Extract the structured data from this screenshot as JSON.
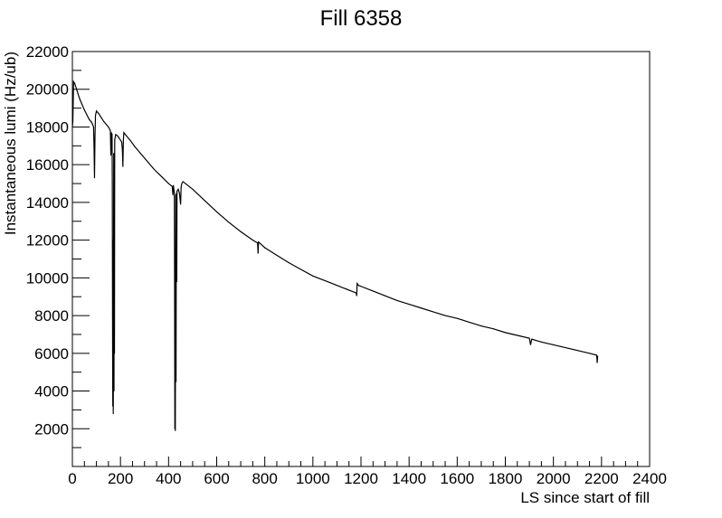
{
  "chart_data": {
    "type": "line",
    "title": "Fill 6358",
    "xlabel": "LS since start of fill",
    "ylabel": "Instantaneous lumi (Hz/ub)",
    "xlim": [
      0,
      2400
    ],
    "ylim": [
      0,
      22000
    ],
    "x_ticks": [
      0,
      200,
      400,
      600,
      800,
      1000,
      1200,
      1400,
      1600,
      1800,
      2000,
      2200,
      2400
    ],
    "y_ticks": [
      2000,
      4000,
      6000,
      8000,
      10000,
      12000,
      14000,
      16000,
      18000,
      20000,
      22000
    ],
    "grid": false,
    "line_color": "#000000",
    "series": [
      {
        "points": [
          [
            0,
            18000
          ],
          [
            2,
            18300
          ],
          [
            5,
            20400
          ],
          [
            10,
            20300
          ],
          [
            20,
            19900
          ],
          [
            30,
            19500
          ],
          [
            40,
            19200
          ],
          [
            50,
            18900
          ],
          [
            60,
            18650
          ],
          [
            70,
            18400
          ],
          [
            80,
            18250
          ],
          [
            88,
            18000
          ],
          [
            90,
            17000
          ],
          [
            92,
            15300
          ],
          [
            94,
            17500
          ],
          [
            96,
            18600
          ],
          [
            100,
            18850
          ],
          [
            110,
            18700
          ],
          [
            120,
            18500
          ],
          [
            130,
            18300
          ],
          [
            140,
            18150
          ],
          [
            150,
            18000
          ],
          [
            158,
            17800
          ],
          [
            160,
            16500
          ],
          [
            162,
            17700
          ],
          [
            165,
            17600
          ],
          [
            166,
            15000
          ],
          [
            167,
            8000
          ],
          [
            168,
            3200
          ],
          [
            169,
            12000
          ],
          [
            170,
            2800
          ],
          [
            171,
            9000
          ],
          [
            172,
            16600
          ],
          [
            173,
            4000
          ],
          [
            174,
            16000
          ],
          [
            175,
            6000
          ],
          [
            176,
            17300
          ],
          [
            180,
            17600
          ],
          [
            190,
            17500
          ],
          [
            200,
            17300
          ],
          [
            205,
            17200
          ],
          [
            208,
            16800
          ],
          [
            210,
            15900
          ],
          [
            212,
            17300
          ],
          [
            214,
            17700
          ],
          [
            220,
            17600
          ],
          [
            240,
            17300
          ],
          [
            260,
            16950
          ],
          [
            280,
            16650
          ],
          [
            300,
            16350
          ],
          [
            320,
            16050
          ],
          [
            340,
            15750
          ],
          [
            360,
            15500
          ],
          [
            380,
            15250
          ],
          [
            400,
            15000
          ],
          [
            415,
            14850
          ],
          [
            418,
            14400
          ],
          [
            420,
            14900
          ],
          [
            424,
            14500
          ],
          [
            425,
            10000
          ],
          [
            426,
            2000
          ],
          [
            427,
            6000
          ],
          [
            428,
            1900
          ],
          [
            429,
            9000
          ],
          [
            430,
            14400
          ],
          [
            431,
            4500
          ],
          [
            432,
            12000
          ],
          [
            433,
            14500
          ],
          [
            434,
            9800
          ],
          [
            435,
            14600
          ],
          [
            440,
            14700
          ],
          [
            445,
            14500
          ],
          [
            450,
            13900
          ],
          [
            452,
            14800
          ],
          [
            455,
            15000
          ],
          [
            460,
            15100
          ],
          [
            470,
            15000
          ],
          [
            500,
            14700
          ],
          [
            550,
            14100
          ],
          [
            600,
            13500
          ],
          [
            650,
            12950
          ],
          [
            700,
            12450
          ],
          [
            750,
            12000
          ],
          [
            770,
            11850
          ],
          [
            772,
            11300
          ],
          [
            774,
            11900
          ],
          [
            800,
            11600
          ],
          [
            850,
            11200
          ],
          [
            900,
            10800
          ],
          [
            950,
            10450
          ],
          [
            1000,
            10100
          ],
          [
            1050,
            9850
          ],
          [
            1100,
            9600
          ],
          [
            1150,
            9350
          ],
          [
            1180,
            9200
          ],
          [
            1182,
            9050
          ],
          [
            1184,
            9700
          ],
          [
            1190,
            9600
          ],
          [
            1200,
            9550
          ],
          [
            1250,
            9300
          ],
          [
            1300,
            9050
          ],
          [
            1350,
            8800
          ],
          [
            1400,
            8600
          ],
          [
            1450,
            8400
          ],
          [
            1500,
            8200
          ],
          [
            1550,
            8000
          ],
          [
            1600,
            7850
          ],
          [
            1650,
            7650
          ],
          [
            1700,
            7450
          ],
          [
            1750,
            7300
          ],
          [
            1800,
            7100
          ],
          [
            1850,
            6950
          ],
          [
            1900,
            6800
          ],
          [
            1905,
            6450
          ],
          [
            1910,
            6750
          ],
          [
            1950,
            6600
          ],
          [
            2000,
            6450
          ],
          [
            2050,
            6300
          ],
          [
            2100,
            6150
          ],
          [
            2150,
            6000
          ],
          [
            2180,
            5900
          ],
          [
            2182,
            5500
          ],
          [
            2184,
            5850
          ]
        ]
      }
    ]
  }
}
